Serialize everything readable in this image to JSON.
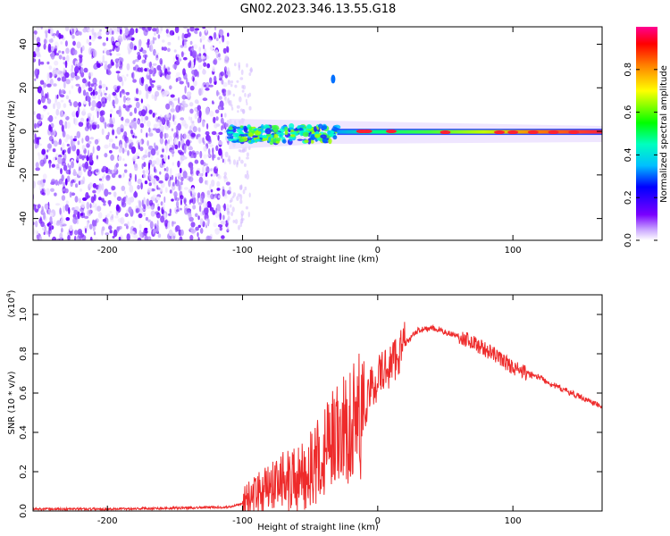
{
  "title": "GN02.2023.346.13.55.G18",
  "colors": {
    "snr_line": "#ee2b2b",
    "axis": "#000000"
  },
  "chart_data": [
    {
      "type": "heatmap",
      "title": "",
      "xlabel": "Height of straight line (km)",
      "ylabel": "Frequency (Hz)",
      "xlim": [
        -255,
        166
      ],
      "ylim": [
        -50,
        48
      ],
      "x_ticks": [
        -200,
        -100,
        0,
        100
      ],
      "x_tick_labels": [
        "-200",
        "-100",
        "0",
        "100"
      ],
      "y_ticks": [
        -40,
        -20,
        0,
        20,
        40
      ],
      "y_tick_labels": [
        "-40",
        "-20",
        "0",
        "20",
        "40"
      ],
      "colorbar": {
        "label": "Normalized spectral amplitude",
        "range": [
          0,
          1
        ],
        "ticks": [
          0.0,
          0.2,
          0.4,
          0.6,
          0.8
        ],
        "tick_labels": [
          "0.0",
          "0.2",
          "0.4",
          "0.6",
          "0.8"
        ],
        "colormap": "rainbow"
      },
      "noise_region_x": [
        -255,
        -110
      ],
      "signal_track": {
        "x": [
          -110,
          -80,
          -50,
          -30,
          0,
          50,
          100,
          166
        ],
        "center_freq": [
          -3,
          -2,
          0,
          0,
          0,
          -2,
          -2,
          -3
        ],
        "amplitude": [
          0.35,
          0.45,
          0.5,
          0.45,
          0.7,
          0.85,
          0.95,
          0.8
        ]
      },
      "grid": false
    },
    {
      "type": "line",
      "title": "",
      "xlabel": "Height of straight line (km)",
      "ylabel": "SNR (10 * v/v)",
      "y_scale_label_main": "(x10",
      "y_scale_label_exp": "4",
      "y_scale_label_end": ")",
      "xlim": [
        -255,
        166
      ],
      "ylim": [
        0,
        1.1
      ],
      "x_ticks": [
        -200,
        -100,
        0,
        100
      ],
      "x_tick_labels": [
        "-200",
        "-100",
        "0",
        "100"
      ],
      "y_ticks": [
        0.0,
        0.2,
        0.4,
        0.6,
        0.8,
        1.0
      ],
      "y_tick_labels": [
        "0.0",
        "0.2",
        "0.4",
        "0.6",
        "0.8",
        "1.0"
      ],
      "series": [
        {
          "x": [
            -255,
            -200,
            -150,
            -110,
            -100,
            -90,
            -80,
            -70,
            -60,
            -50,
            -40,
            -30,
            -20,
            -15,
            -10,
            -5,
            0,
            10,
            20,
            30,
            40,
            50,
            60,
            70,
            80,
            90,
            100,
            110,
            120,
            130,
            140,
            150,
            166
          ],
          "values": [
            0.01,
            0.01,
            0.015,
            0.02,
            0.04,
            0.08,
            0.12,
            0.15,
            0.17,
            0.2,
            0.3,
            0.4,
            0.45,
            0.55,
            0.5,
            0.62,
            0.68,
            0.75,
            0.85,
            0.92,
            0.93,
            0.91,
            0.89,
            0.86,
            0.82,
            0.78,
            0.73,
            0.7,
            0.68,
            0.64,
            0.61,
            0.58,
            0.53
          ]
        }
      ],
      "grid": false
    }
  ]
}
